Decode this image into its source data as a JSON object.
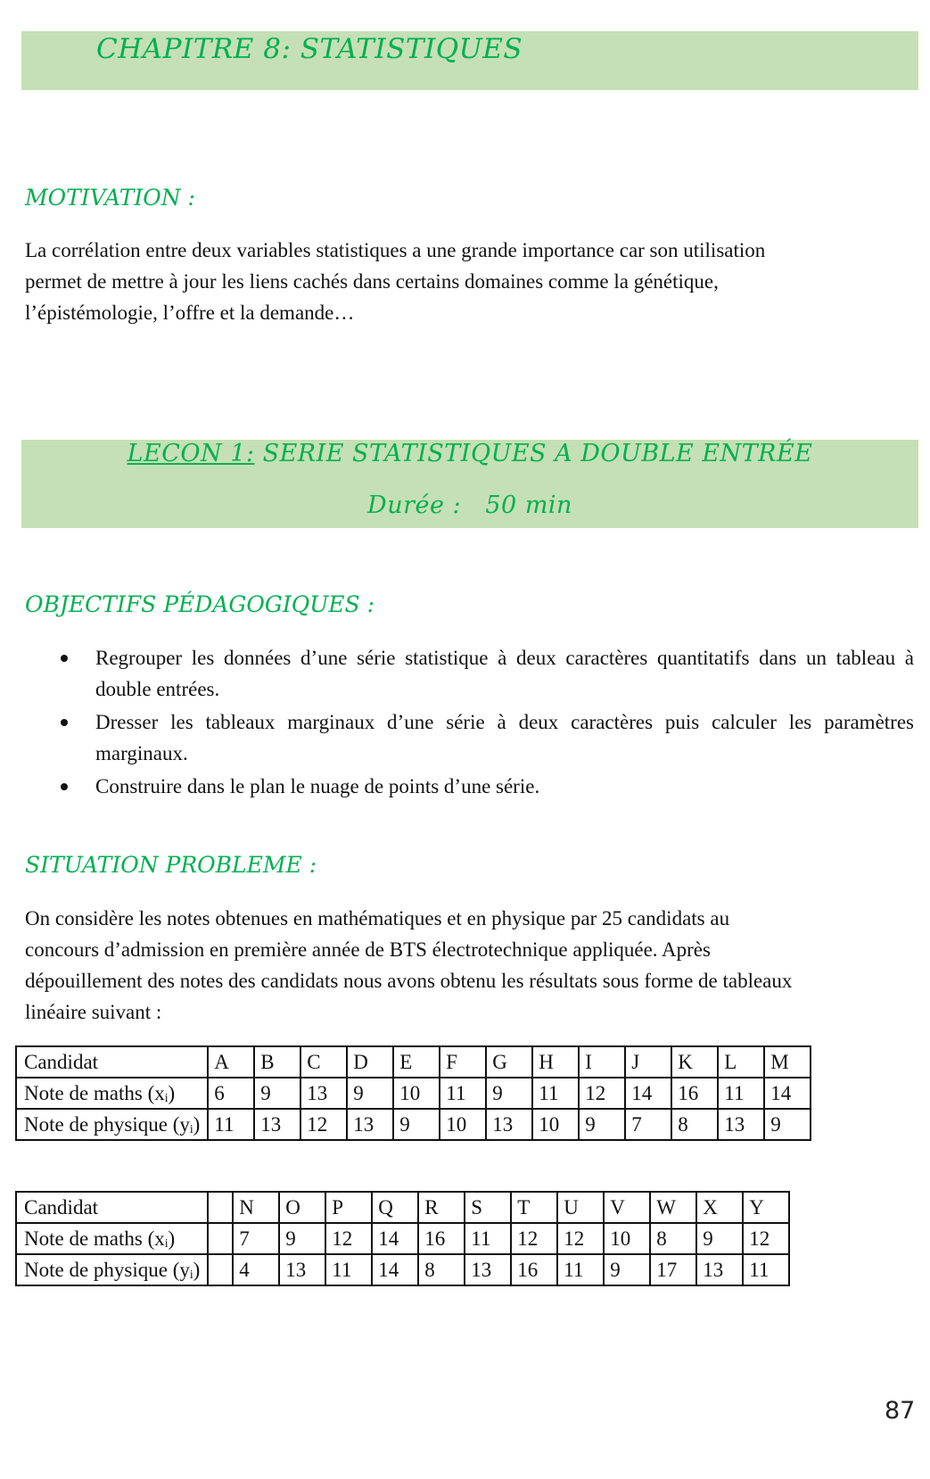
{
  "chapter_title": "CHAPITRE 8: STATISTIQUES",
  "motivation": {
    "heading": "MOTIVATION :",
    "lines": [
      "La corrélation entre deux variables statistiques a une grande importance car son utilisation",
      "permet de mettre à jour les liens cachés dans certains domaines comme la génétique,",
      "l’épistémologie, l’offre et la  demande…"
    ]
  },
  "lesson": {
    "label": "LECON 1:",
    "title": " SERIE STATISTIQUES A DOUBLE ENTRÉE",
    "duration": "Durée :   50 min"
  },
  "objectives": {
    "heading": "OBJECTIFS PÉDAGOGIQUES :",
    "items": [
      "Regrouper les données d’une série statistique à deux caractères quantitatifs dans un tableau à double entrées.",
      "Dresser les tableaux marginaux d’une série à deux caractères puis calculer les paramètres marginaux.",
      " Construire dans le plan le nuage de points d’une série."
    ]
  },
  "situation": {
    "heading": "SITUATION PROBLEME :",
    "lines": [
      "On considère les notes obtenues en mathématiques et en physique par 25 candidats au",
      "concours d’admission en première année de BTS électrotechnique appliquée. Après",
      "dépouillement des notes des candidats nous avons obtenu les résultats sous forme de tableaux",
      "linéaire suivant :"
    ]
  },
  "table1": {
    "row_labels": [
      "Candidat",
      "Note de maths (xᵢ)",
      "Note de physique (yᵢ)"
    ],
    "candidates": [
      "A",
      "B",
      "C",
      "D",
      "E",
      "F",
      "G",
      "H",
      "I",
      "J",
      "K",
      "L",
      "M"
    ],
    "maths": [
      "6",
      "9",
      "13",
      "9",
      "10",
      "11",
      "9",
      "11",
      "12",
      "14",
      "16",
      "11",
      "14"
    ],
    "physique": [
      "11",
      "13",
      "12",
      "13",
      "9",
      "10",
      "13",
      "10",
      "9",
      "7",
      "8",
      "13",
      "9"
    ]
  },
  "table2": {
    "row_labels": [
      "Candidat",
      "Note de maths (xᵢ)",
      "Note de physique (yᵢ)"
    ],
    "candidates": [
      "N",
      "O",
      "P",
      "Q",
      "R",
      "S",
      "T",
      "U",
      "V",
      "W",
      "X",
      "Y"
    ],
    "maths": [
      "7",
      "9",
      "12",
      "14",
      "16",
      "11",
      "12",
      "12",
      "10",
      "8",
      "9",
      "12"
    ],
    "physique": [
      "4",
      "13",
      "11",
      "14",
      "8",
      "13",
      "16",
      "11",
      "9",
      "17",
      "13",
      "11"
    ]
  },
  "page_number": "87",
  "colors": {
    "banner": "#c5e0b4",
    "heading": "#00b050"
  }
}
